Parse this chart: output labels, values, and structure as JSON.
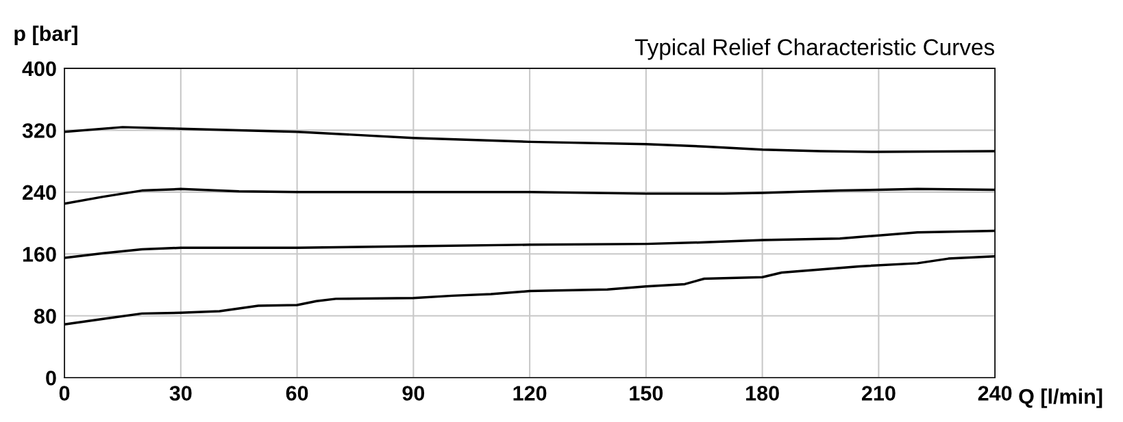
{
  "chart_data": {
    "type": "line",
    "title": "Typical Relief Characteristic Curves",
    "xlabel": "Q [l/min]",
    "ylabel": "p [bar]",
    "xlim": [
      0,
      240
    ],
    "xticks": [
      0,
      30,
      60,
      90,
      120,
      150,
      180,
      210,
      240
    ],
    "ylim": [
      0,
      400
    ],
    "yticks": [
      0,
      80,
      160,
      240,
      320,
      400
    ],
    "grid": true,
    "series": [
      {
        "color": "#000000",
        "x": [
          0,
          15,
          30,
          60,
          90,
          120,
          150,
          165,
          180,
          195,
          210,
          240
        ],
        "values": [
          318,
          324,
          322,
          318,
          310,
          305,
          302,
          299,
          295,
          293,
          292,
          293
        ]
      },
      {
        "color": "#000000",
        "x": [
          0,
          10,
          20,
          30,
          45,
          60,
          90,
          120,
          150,
          170,
          180,
          200,
          220,
          240
        ],
        "values": [
          225,
          234,
          242,
          244,
          241,
          240,
          240,
          240,
          238,
          238,
          239,
          242,
          244,
          243
        ]
      },
      {
        "color": "#000000",
        "x": [
          0,
          10,
          20,
          30,
          60,
          90,
          120,
          150,
          165,
          180,
          200,
          220,
          240
        ],
        "values": [
          155,
          161,
          166,
          168,
          168,
          170,
          172,
          173,
          175,
          178,
          180,
          188,
          190
        ]
      },
      {
        "color": "#000000",
        "x": [
          0,
          10,
          20,
          30,
          40,
          50,
          60,
          65,
          70,
          90,
          100,
          110,
          120,
          140,
          150,
          160,
          165,
          180,
          185,
          195,
          205,
          220,
          228,
          240
        ],
        "values": [
          69,
          76,
          83,
          84,
          86,
          93,
          94,
          99,
          102,
          103,
          106,
          108,
          112,
          114,
          118,
          121,
          128,
          130,
          136,
          140,
          144,
          148,
          154,
          157
        ]
      }
    ]
  }
}
